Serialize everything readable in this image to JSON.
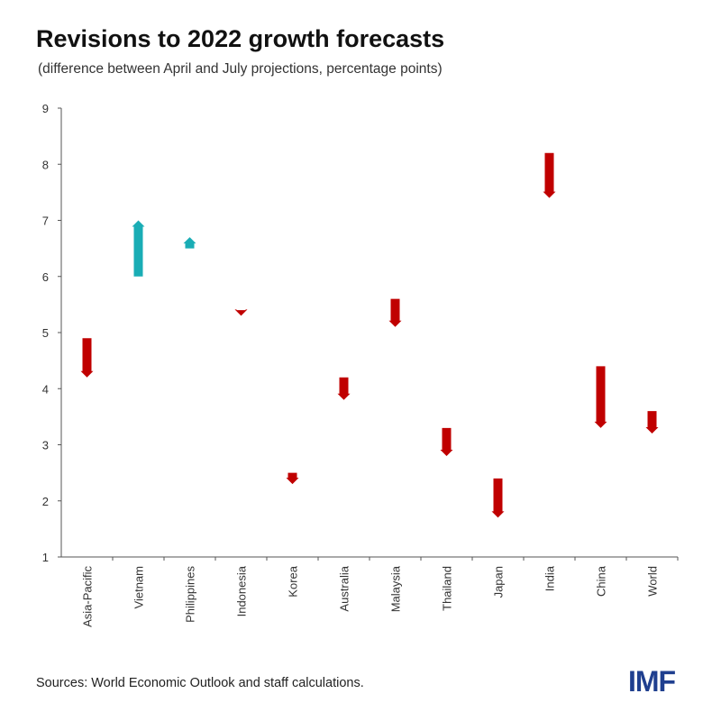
{
  "title": "Revisions to 2022 growth forecasts",
  "subtitle": "(difference between April and July projections, percentage points)",
  "source": "Sources: World Economic Outlook and staff calculations.",
  "logo": "IMF",
  "colors": {
    "upward": "#1AADB5",
    "downward": "#C00000"
  },
  "chart_data": {
    "type": "arrow",
    "title": "Revisions to 2022 growth forecasts",
    "ylim": [
      1,
      9
    ],
    "yticks": [
      1,
      2,
      3,
      4,
      5,
      6,
      7,
      8,
      9
    ],
    "grid": false,
    "categories": [
      "Asia-Pacific",
      "Vietnam",
      "Philippines",
      "Indonesia",
      "Korea",
      "Australia",
      "Malaysia",
      "Thailand",
      "Japan",
      "India",
      "China",
      "World"
    ],
    "from": [
      4.9,
      6.0,
      6.5,
      5.4,
      2.5,
      4.2,
      5.6,
      3.3,
      2.4,
      8.2,
      4.4,
      3.6
    ],
    "to": [
      4.2,
      7.0,
      6.7,
      5.3,
      2.3,
      3.8,
      5.1,
      2.8,
      1.7,
      7.4,
      3.3,
      3.2
    ]
  }
}
